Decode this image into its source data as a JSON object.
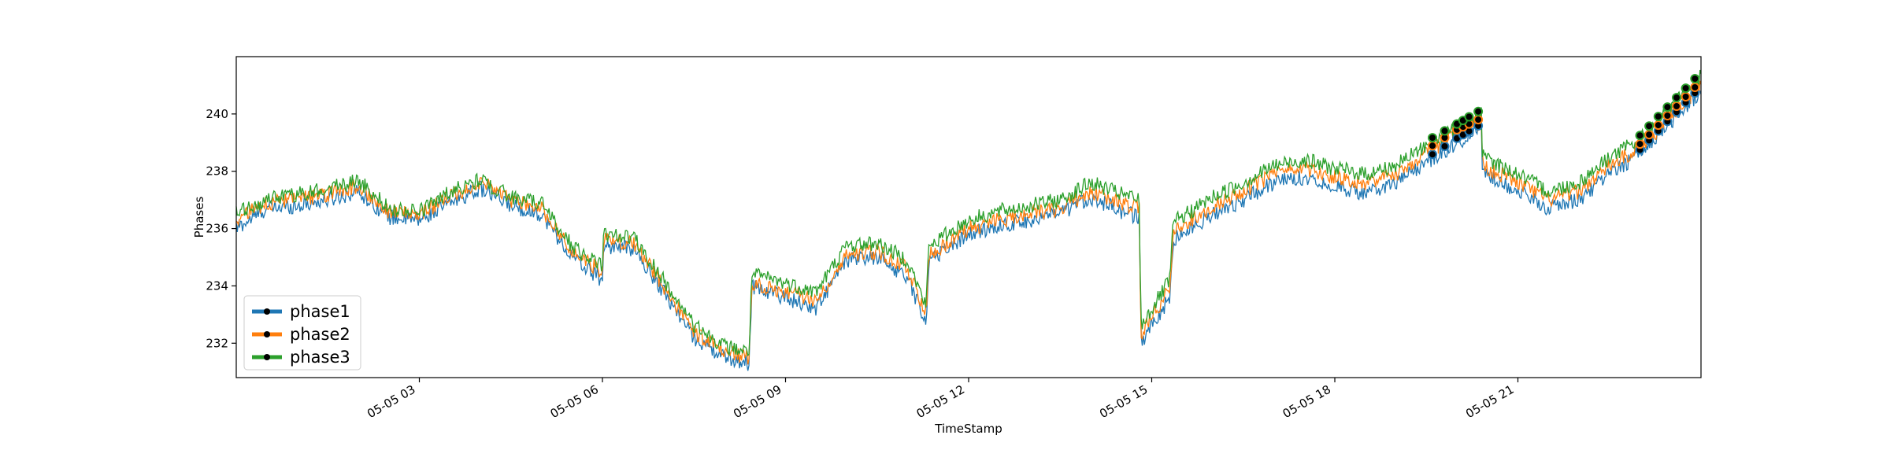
{
  "chart_data": {
    "type": "line",
    "title": "",
    "xlabel": "TimeStamp",
    "ylabel": "Phases",
    "x_start": "2021-05-05 00:00",
    "x_end": "2021-05-06 00:00",
    "xlim": [
      "05-05 00:00",
      "05-06 00:00"
    ],
    "ylim": [
      230.8,
      242.0
    ],
    "x_ticks": [
      {
        "label": "05-05 03",
        "hour": 3
      },
      {
        "label": "05-05 06",
        "hour": 6
      },
      {
        "label": "05-05 09",
        "hour": 9
      },
      {
        "label": "05-05 12",
        "hour": 12
      },
      {
        "label": "05-05 15",
        "hour": 15
      },
      {
        "label": "05-05 18",
        "hour": 18
      },
      {
        "label": "05-05 21",
        "hour": 21
      }
    ],
    "y_ticks": [
      232,
      234,
      236,
      238,
      240
    ],
    "grid": false,
    "legend_position": "lower-left",
    "series": [
      {
        "name": "phase1",
        "color": "#1f77b4",
        "hours": [
          0,
          0.5,
          1,
          1.5,
          2,
          2.5,
          3,
          3.5,
          4,
          4.5,
          5,
          5.5,
          6,
          6.02,
          6.5,
          7,
          7.5,
          8,
          8.4,
          8.45,
          9,
          9.5,
          10,
          10.5,
          11,
          11.3,
          11.35,
          12,
          12.5,
          13,
          13.5,
          14,
          14.5,
          14.8,
          14.82,
          15.3,
          15.35,
          16,
          16.5,
          17,
          17.5,
          18,
          18.5,
          19,
          19.5,
          20,
          20.4,
          20.42,
          21,
          21.5,
          22,
          22.5,
          23,
          23.5,
          24
        ],
        "values": [
          236.0,
          236.7,
          236.8,
          237.0,
          237.3,
          236.4,
          236.3,
          236.9,
          237.4,
          236.8,
          236.5,
          235.0,
          234.2,
          235.4,
          235.3,
          233.8,
          232.2,
          231.5,
          231.3,
          234.0,
          233.6,
          233.2,
          234.9,
          235.0,
          234.3,
          232.7,
          234.9,
          235.8,
          236.1,
          236.3,
          236.5,
          237.1,
          236.6,
          236.4,
          232.0,
          233.6,
          235.6,
          236.5,
          237.0,
          237.6,
          237.8,
          237.5,
          237.2,
          237.6,
          238.3,
          239.0,
          239.5,
          238.0,
          237.3,
          236.7,
          237.0,
          237.9,
          238.6,
          239.7,
          240.8
        ]
      },
      {
        "name": "phase2",
        "color": "#ff7f0e",
        "hours": [
          0,
          0.5,
          1,
          1.5,
          2,
          2.5,
          3,
          3.5,
          4,
          4.5,
          5,
          5.5,
          6,
          6.02,
          6.5,
          7,
          7.5,
          8,
          8.4,
          8.45,
          9,
          9.5,
          10,
          10.5,
          11,
          11.3,
          11.35,
          12,
          12.5,
          13,
          13.5,
          14,
          14.5,
          14.8,
          14.82,
          15.3,
          15.35,
          16,
          16.5,
          17,
          17.5,
          18,
          18.5,
          19,
          19.5,
          20,
          20.4,
          20.42,
          21,
          21.5,
          22,
          22.5,
          23,
          23.5,
          24
        ],
        "values": [
          236.3,
          236.9,
          237.0,
          237.2,
          237.5,
          236.6,
          236.5,
          237.1,
          237.6,
          237.0,
          236.7,
          235.2,
          234.5,
          235.6,
          235.5,
          234.0,
          232.4,
          231.7,
          231.5,
          234.1,
          233.8,
          233.5,
          235.1,
          235.2,
          234.6,
          233.0,
          235.1,
          236.0,
          236.3,
          236.5,
          236.7,
          237.3,
          236.9,
          236.7,
          232.3,
          233.9,
          235.9,
          236.8,
          237.3,
          237.9,
          238.1,
          237.8,
          237.6,
          237.9,
          238.6,
          239.3,
          239.7,
          238.2,
          237.6,
          237.0,
          237.3,
          238.2,
          238.8,
          239.9,
          241.0
        ]
      },
      {
        "name": "phase3",
        "color": "#2ca02c",
        "hours": [
          0,
          0.5,
          1,
          1.5,
          2,
          2.5,
          3,
          3.5,
          4,
          4.5,
          5,
          5.5,
          6,
          6.02,
          6.5,
          7,
          7.5,
          8,
          8.4,
          8.45,
          9,
          9.5,
          10,
          10.5,
          11,
          11.3,
          11.35,
          12,
          12.5,
          13,
          13.5,
          14,
          14.5,
          14.8,
          14.82,
          15.3,
          15.35,
          16,
          16.5,
          17,
          17.5,
          18,
          18.5,
          19,
          19.5,
          20,
          20.4,
          20.42,
          21,
          21.5,
          22,
          22.5,
          23,
          23.5,
          24
        ],
        "values": [
          236.5,
          237.0,
          237.2,
          237.4,
          237.7,
          236.7,
          236.6,
          237.3,
          237.7,
          237.1,
          236.9,
          235.4,
          234.7,
          235.8,
          235.7,
          234.2,
          232.6,
          231.9,
          231.7,
          234.4,
          234.1,
          233.8,
          235.4,
          235.5,
          234.9,
          233.3,
          235.4,
          236.3,
          236.6,
          236.8,
          237.0,
          237.6,
          237.2,
          237.0,
          232.6,
          234.2,
          236.2,
          237.1,
          237.6,
          238.2,
          238.4,
          238.1,
          237.9,
          238.2,
          238.9,
          239.5,
          240.0,
          238.5,
          237.9,
          237.3,
          237.6,
          238.5,
          239.1,
          240.2,
          241.3
        ]
      }
    ]
  }
}
